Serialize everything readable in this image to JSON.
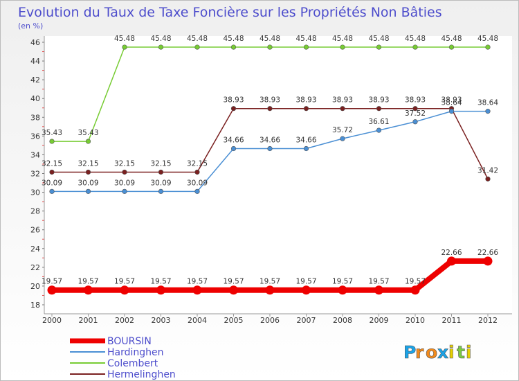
{
  "chart_data": {
    "type": "line",
    "title": "Evolution du Taux de Taxe Foncière sur les Propriétés Non Bâties",
    "ylabel": "(en %)",
    "xlabel": "",
    "categories": [
      "2000",
      "2001",
      "2002",
      "2003",
      "2004",
      "2005",
      "2006",
      "2007",
      "2008",
      "2009",
      "2010",
      "2011",
      "2012"
    ],
    "ylim": [
      18,
      46
    ],
    "yticks": [
      18,
      20,
      22,
      24,
      26,
      28,
      30,
      32,
      34,
      36,
      38,
      40,
      42,
      44,
      46
    ],
    "series": [
      {
        "name": "BOURSIN",
        "color": "#ee0000",
        "values": [
          19.57,
          19.57,
          19.57,
          19.57,
          19.57,
          19.57,
          19.57,
          19.57,
          19.57,
          19.57,
          19.57,
          22.66,
          22.66
        ],
        "labels": [
          "19.57",
          "19.57",
          "19.57",
          "19.57",
          "19.57",
          "19.57",
          "19.57",
          "19.57",
          "19.57",
          "19.57",
          "19.57",
          "22.66",
          "22.66"
        ]
      },
      {
        "name": "Hardinghen",
        "color": "#4a8fd4",
        "values": [
          30.09,
          30.09,
          30.09,
          30.09,
          30.09,
          34.66,
          34.66,
          34.66,
          35.72,
          36.61,
          37.52,
          38.64,
          38.64
        ],
        "labels": [
          "30.09",
          "30.09",
          "30.09",
          "30.09",
          "30.09",
          "34.66",
          "34.66",
          "34.66",
          "35.72",
          "36.61",
          "37.52",
          "38.64",
          "38.64"
        ]
      },
      {
        "name": "Colembert",
        "color": "#77cc33",
        "values": [
          35.43,
          35.43,
          45.48,
          45.48,
          45.48,
          45.48,
          45.48,
          45.48,
          45.48,
          45.48,
          45.48,
          45.48,
          45.48
        ],
        "labels": [
          "35.43",
          "35.43",
          "45.48",
          "45.48",
          "45.48",
          "45.48",
          "45.48",
          "45.48",
          "45.48",
          "45.48",
          "45.48",
          "45.48",
          "45.48"
        ]
      },
      {
        "name": "Hermelinghen",
        "color": "#7a2020",
        "values": [
          32.15,
          32.15,
          32.15,
          32.15,
          32.15,
          38.93,
          38.93,
          38.93,
          38.93,
          38.93,
          38.93,
          38.93,
          31.42
        ],
        "labels": [
          "32.15",
          "32.15",
          "32.15",
          "32.15",
          "32.15",
          "38.93",
          "38.93",
          "38.93",
          "38.93",
          "38.93",
          "38.93",
          "38.93",
          "31.42"
        ]
      }
    ],
    "legend": {
      "placement": "bottom-left",
      "items": [
        "BOURSIN",
        "Hardinghen",
        "Colembert",
        "Hermelinghen"
      ]
    },
    "grid": false
  },
  "branding": {
    "logo_letters": [
      "P",
      "r",
      "o",
      "x",
      "i",
      "t",
      "i"
    ],
    "logo_colors": [
      "#1aa3e8",
      "#f18a1c",
      "#f18a1c",
      "#1aa3e8",
      "#e8d000",
      "#7ac943",
      "#e8d000"
    ]
  }
}
